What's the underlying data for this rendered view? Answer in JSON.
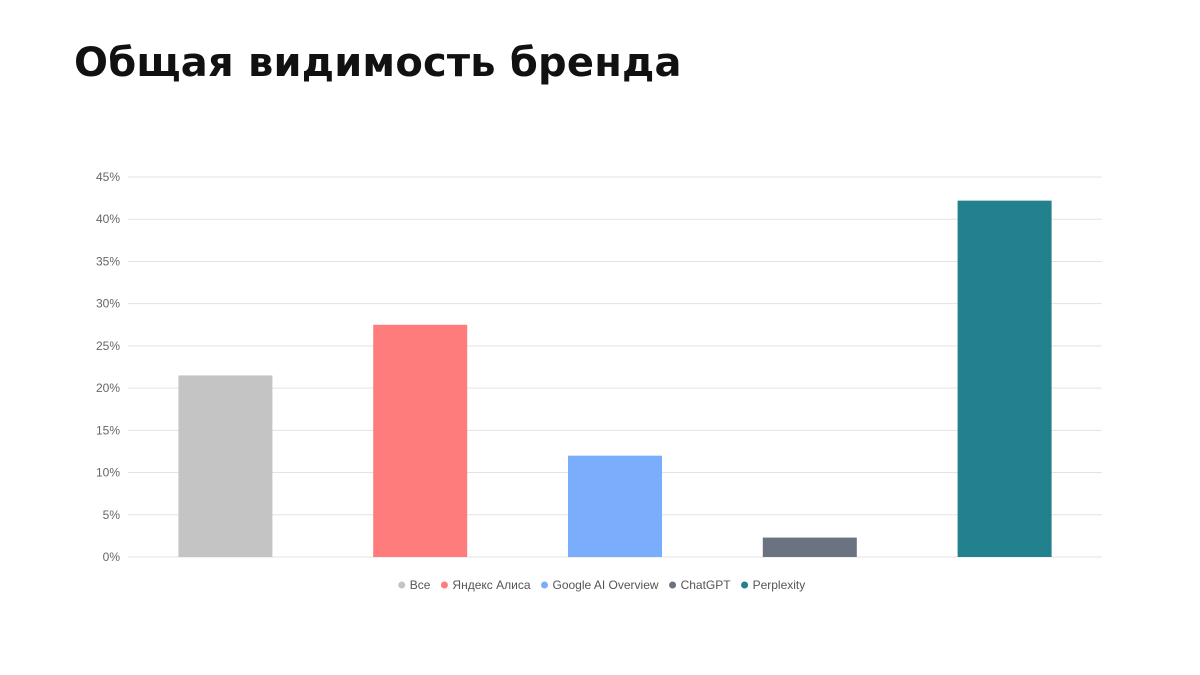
{
  "slide": {
    "title": "Общая видимость бренда"
  },
  "chart_data": {
    "type": "bar",
    "categories": [
      "Все",
      "Яндекс Алиса",
      "Google AI Overview",
      "ChatGPT",
      "Perplexity"
    ],
    "values": [
      21.5,
      27.5,
      12,
      2.3,
      42.2
    ],
    "colors": [
      "#c4c4c4",
      "#ff7c7c",
      "#7aaefc",
      "#6b7280",
      "#23808d"
    ],
    "ylim": [
      0,
      45
    ],
    "y_ticks": [
      "0%",
      "5%",
      "10%",
      "15%",
      "20%",
      "25%",
      "30%",
      "35%",
      "40%",
      "45%"
    ],
    "grid": true,
    "legend": {
      "position": "bottom-center",
      "entries": [
        "Все",
        "Яндекс Алиса",
        "Google AI Overview",
        "ChatGPT",
        "Perplexity"
      ]
    }
  }
}
